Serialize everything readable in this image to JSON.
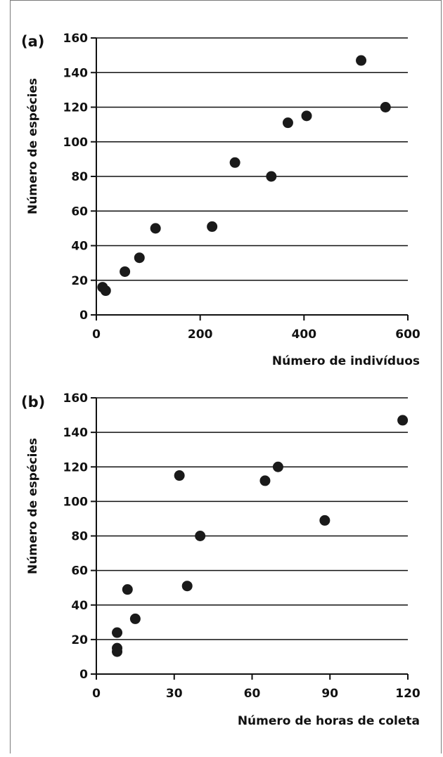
{
  "chart_data": [
    {
      "type": "scatter",
      "panel_label": "(a)",
      "xlabel": "Número de indivíduos",
      "ylabel": "Número de espécies",
      "xlim": [
        0,
        600
      ],
      "ylim": [
        0,
        160
      ],
      "x_ticks": [
        0,
        200,
        400,
        600
      ],
      "y_ticks": [
        0,
        20,
        40,
        60,
        80,
        100,
        120,
        140,
        160
      ],
      "grid": "horizontal",
      "marker_color": "#1a1a1a",
      "points": [
        {
          "x": 12,
          "y": 16
        },
        {
          "x": 18,
          "y": 14
        },
        {
          "x": 55,
          "y": 25
        },
        {
          "x": 83,
          "y": 33
        },
        {
          "x": 114,
          "y": 50
        },
        {
          "x": 223,
          "y": 51
        },
        {
          "x": 267,
          "y": 88
        },
        {
          "x": 337,
          "y": 80
        },
        {
          "x": 369,
          "y": 111
        },
        {
          "x": 405,
          "y": 115
        },
        {
          "x": 510,
          "y": 147
        },
        {
          "x": 557,
          "y": 120
        }
      ]
    },
    {
      "type": "scatter",
      "panel_label": "(b)",
      "xlabel": "Número de horas de coleta",
      "ylabel": "Número de espécies",
      "xlim": [
        0,
        120
      ],
      "ylim": [
        0,
        160
      ],
      "x_ticks": [
        0,
        30,
        60,
        90,
        120
      ],
      "y_ticks": [
        0,
        20,
        40,
        60,
        80,
        100,
        120,
        140,
        160
      ],
      "grid": "horizontal",
      "marker_color": "#1a1a1a",
      "points": [
        {
          "x": 8,
          "y": 13
        },
        {
          "x": 8,
          "y": 15
        },
        {
          "x": 8,
          "y": 24
        },
        {
          "x": 12,
          "y": 49
        },
        {
          "x": 15,
          "y": 32
        },
        {
          "x": 32,
          "y": 115
        },
        {
          "x": 35,
          "y": 51
        },
        {
          "x": 40,
          "y": 80
        },
        {
          "x": 65,
          "y": 112
        },
        {
          "x": 70,
          "y": 120
        },
        {
          "x": 88,
          "y": 89
        },
        {
          "x": 118,
          "y": 147
        }
      ]
    }
  ]
}
